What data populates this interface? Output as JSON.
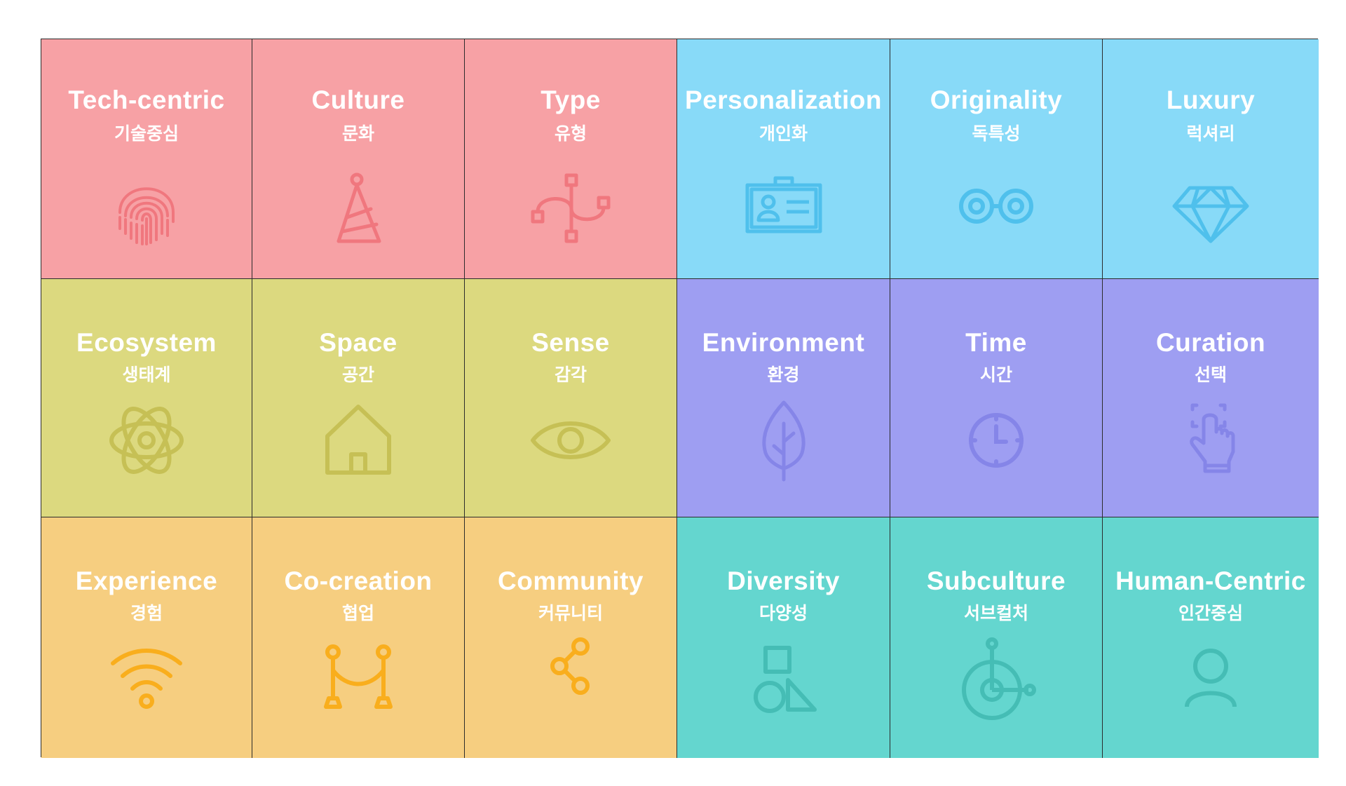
{
  "colors": {
    "red": "#F7A1A5",
    "red_icon": "#F0777E",
    "blue": "#88DAF8",
    "blue_icon": "#4FC0EC",
    "olive": "#DCD97F",
    "olive_icon": "#C6C055",
    "purple": "#9E9EF2",
    "purple_icon": "#8585E8",
    "orange": "#F6CE80",
    "orange_icon": "#F9AE1D",
    "teal": "#64D6CF",
    "teal_icon": "#45BDB5",
    "border": "#2B2B2B"
  },
  "cells": [
    {
      "en": "Tech-centric",
      "ko": "기술중심",
      "icon": "fingerprint-icon",
      "color": "red"
    },
    {
      "en": "Culture",
      "ko": "문화",
      "icon": "party-hat-icon",
      "color": "red"
    },
    {
      "en": "Type",
      "ko": "유형",
      "icon": "bezier-curve-icon",
      "color": "red"
    },
    {
      "en": "Personalization",
      "ko": "개인화",
      "icon": "id-card-icon",
      "color": "blue"
    },
    {
      "en": "Originality",
      "ko": "독특성",
      "icon": "glasses-icon",
      "color": "blue"
    },
    {
      "en": "Luxury",
      "ko": "럭셔리",
      "icon": "diamond-icon",
      "color": "blue"
    },
    {
      "en": "Ecosystem",
      "ko": "생태계",
      "icon": "atom-icon",
      "color": "olive"
    },
    {
      "en": "Space",
      "ko": "공간",
      "icon": "house-icon",
      "color": "olive"
    },
    {
      "en": "Sense",
      "ko": "감각",
      "icon": "eye-icon",
      "color": "olive"
    },
    {
      "en": "Environment",
      "ko": "환경",
      "icon": "leaf-icon",
      "color": "purple"
    },
    {
      "en": "Time",
      "ko": "시간",
      "icon": "clock-icon",
      "color": "purple"
    },
    {
      "en": "Curation",
      "ko": "선택",
      "icon": "hand-pointer-icon",
      "color": "purple"
    },
    {
      "en": "Experience",
      "ko": "경험",
      "icon": "wifi-icon",
      "color": "orange"
    },
    {
      "en": "Co-creation",
      "ko": "협업",
      "icon": "rope-barrier-icon",
      "color": "orange"
    },
    {
      "en": "Community",
      "ko": "커뮤니티",
      "icon": "share-icon",
      "color": "orange"
    },
    {
      "en": "Diversity",
      "ko": "다양성",
      "icon": "shapes-icon",
      "color": "teal"
    },
    {
      "en": "Subculture",
      "ko": "서브컬처",
      "icon": "unicycle-icon",
      "color": "teal"
    },
    {
      "en": "Human-Centric",
      "ko": "인간중심",
      "icon": "person-icon",
      "color": "teal"
    }
  ]
}
